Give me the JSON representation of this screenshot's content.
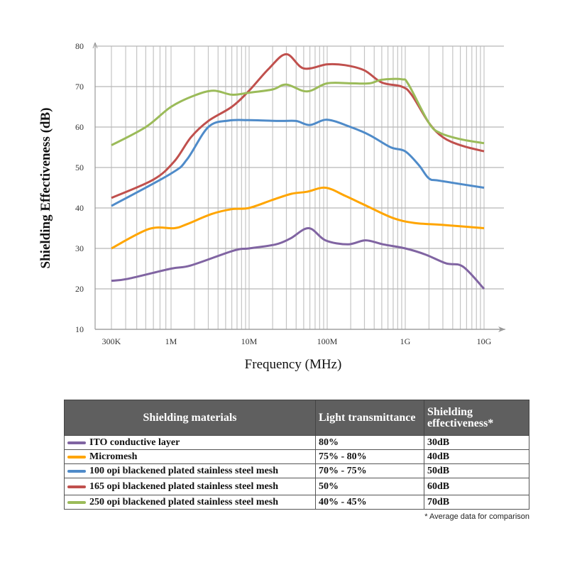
{
  "chart_data": {
    "type": "line",
    "xlabel": "Frequency (MHz)",
    "ylabel": "Shielding Effectiveness (dB)",
    "xscale": "log",
    "x_ticks": [
      {
        "value": 0.3,
        "label": "300K"
      },
      {
        "value": 1,
        "label": "1M"
      },
      {
        "value": 10,
        "label": "10M"
      },
      {
        "value": 100,
        "label": "100M"
      },
      {
        "value": 1000,
        "label": "1G"
      },
      {
        "value": 10000,
        "label": "10G"
      }
    ],
    "ylim": [
      10,
      80
    ],
    "y_ticks": [
      10,
      20,
      30,
      40,
      50,
      60,
      70,
      80
    ],
    "grid": true,
    "series": [
      {
        "name": "ITO conductive layer",
        "color": "#8064a2",
        "points": [
          [
            0.3,
            22
          ],
          [
            0.42,
            22.5
          ],
          [
            1,
            25
          ],
          [
            1.8,
            25.8
          ],
          [
            6.4,
            29.5
          ],
          [
            10,
            30
          ],
          [
            22,
            31
          ],
          [
            34,
            32.5
          ],
          [
            58,
            35
          ],
          [
            95,
            32
          ],
          [
            184,
            31
          ],
          [
            310,
            32
          ],
          [
            520,
            31
          ],
          [
            1000,
            30
          ],
          [
            1800,
            28.5
          ],
          [
            3300,
            26.3
          ],
          [
            5400,
            25.5
          ],
          [
            10000,
            20
          ]
        ]
      },
      {
        "name": "Micromesh",
        "color": "#ffa500",
        "points": [
          [
            0.3,
            30
          ],
          [
            0.64,
            34.8
          ],
          [
            1.1,
            35
          ],
          [
            1.6,
            36
          ],
          [
            3.3,
            38.5
          ],
          [
            6,
            39.7
          ],
          [
            10,
            40
          ],
          [
            20,
            42
          ],
          [
            35,
            43.5
          ],
          [
            55,
            44
          ],
          [
            95,
            45
          ],
          [
            170,
            43
          ],
          [
            320,
            40.5
          ],
          [
            700,
            37.5
          ],
          [
            1300,
            36.3
          ],
          [
            3000,
            35.8
          ],
          [
            10000,
            35
          ]
        ]
      },
      {
        "name": "100 opi blackened plated stainless steel mesh",
        "color": "#4f8bc9",
        "points": [
          [
            0.3,
            40.5
          ],
          [
            1,
            48.5
          ],
          [
            1.6,
            52
          ],
          [
            3,
            60
          ],
          [
            5.5,
            61.6
          ],
          [
            10,
            61.7
          ],
          [
            25,
            61.5
          ],
          [
            40,
            61.5
          ],
          [
            60,
            60.5
          ],
          [
            100,
            61.8
          ],
          [
            200,
            60
          ],
          [
            350,
            58
          ],
          [
            650,
            55
          ],
          [
            1000,
            54
          ],
          [
            1500,
            50.5
          ],
          [
            2000,
            47.3
          ],
          [
            2800,
            46.7
          ],
          [
            10000,
            45
          ]
        ]
      },
      {
        "name": "165 opi blackened plated stainless steel mesh",
        "color": "#c0504d",
        "points": [
          [
            0.3,
            42.5
          ],
          [
            0.7,
            47
          ],
          [
            1.1,
            51.5
          ],
          [
            1.8,
            57.5
          ],
          [
            3,
            61.5
          ],
          [
            6,
            65
          ],
          [
            10,
            69
          ],
          [
            18,
            74.5
          ],
          [
            30,
            78
          ],
          [
            50,
            74.5
          ],
          [
            100,
            75.5
          ],
          [
            170,
            75.3
          ],
          [
            300,
            74
          ],
          [
            500,
            71
          ],
          [
            900,
            70
          ],
          [
            1200,
            68
          ],
          [
            2000,
            61
          ],
          [
            3000,
            57.5
          ],
          [
            5000,
            55.5
          ],
          [
            10000,
            54
          ]
        ]
      },
      {
        "name": "250 opi blackened plated stainless steel mesh",
        "color": "#9bbb59",
        "points": [
          [
            0.3,
            55.5
          ],
          [
            0.6,
            60
          ],
          [
            1,
            65
          ],
          [
            2,
            67.8
          ],
          [
            3.5,
            69
          ],
          [
            6,
            68
          ],
          [
            10,
            68.5
          ],
          [
            20,
            69.3
          ],
          [
            30,
            70.5
          ],
          [
            55,
            68.8
          ],
          [
            100,
            70.8
          ],
          [
            200,
            70.8
          ],
          [
            350,
            70.8
          ],
          [
            500,
            71.7
          ],
          [
            900,
            71.8
          ],
          [
            1100,
            70.5
          ],
          [
            2000,
            61
          ],
          [
            2800,
            58.5
          ],
          [
            5000,
            57
          ],
          [
            10000,
            56
          ]
        ]
      }
    ]
  },
  "table": {
    "headers": [
      "Shielding materials",
      "Light transmittance",
      "Shielding effectiveness*"
    ],
    "rows": [
      {
        "material": "ITO conductive layer",
        "transmittance": "80%",
        "effectiveness": "30dB",
        "color": "#8064a2"
      },
      {
        "material": "Micromesh",
        "transmittance": "75% - 80%",
        "effectiveness": "40dB",
        "color": "#ffa500"
      },
      {
        "material": "100 opi blackened plated stainless steel mesh",
        "transmittance": "70% - 75%",
        "effectiveness": "50dB",
        "color": "#4f8bc9"
      },
      {
        "material": "165 opi blackened plated stainless steel mesh",
        "transmittance": "50%",
        "effectiveness": "60dB",
        "color": "#c0504d"
      },
      {
        "material": "250 opi blackened plated stainless steel mesh",
        "transmittance": "40% - 45%",
        "effectiveness": "70dB",
        "color": "#9bbb59"
      }
    ],
    "footnote": "* Average data for comparison"
  }
}
